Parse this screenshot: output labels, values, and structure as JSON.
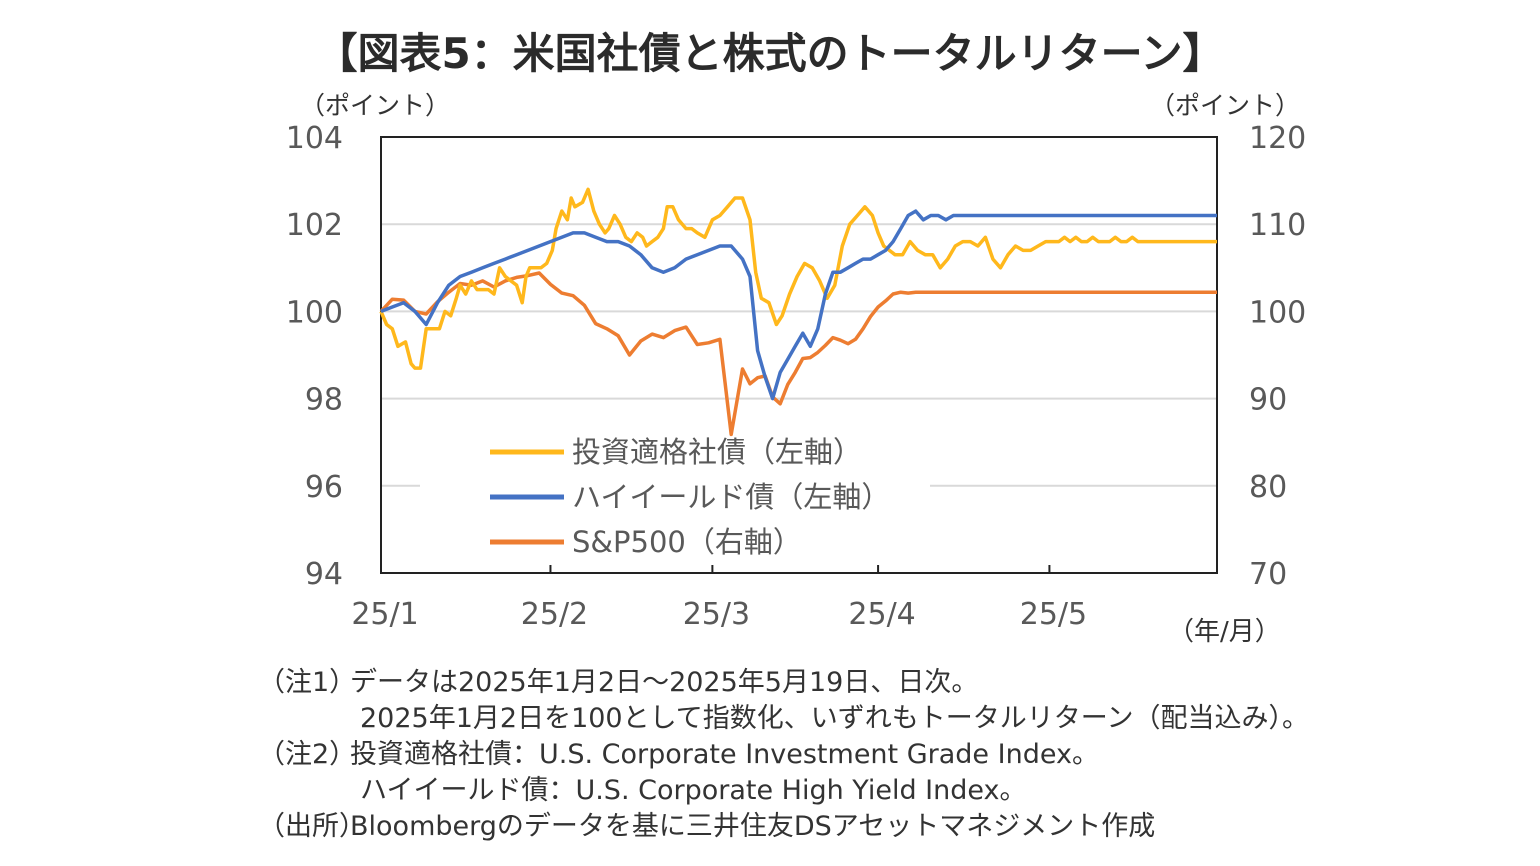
{
  "title": "【図表5：米国社債と株式のトータルリターン】",
  "chart_data": {
    "type": "line",
    "title": "【図表5：米国社債と株式のトータルリターン】",
    "left_axis": {
      "unit": "（ポイント）",
      "ylim": [
        94,
        104
      ],
      "ticks": [
        "104",
        "102",
        "100",
        "98",
        "96",
        "94"
      ]
    },
    "right_axis": {
      "unit": "（ポイント）",
      "ylim": [
        70,
        120
      ],
      "ticks": [
        "120",
        "110",
        "100",
        "90",
        "80",
        "70"
      ]
    },
    "x_axis": {
      "unit": "（年/月）",
      "ticks": [
        "25/1",
        "25/2",
        "25/3",
        "25/4",
        "25/5"
      ]
    },
    "grid": "horizontal",
    "legend_position": "lower-left",
    "series": [
      {
        "name": "投資適格社債（左軸）",
        "axis": "left",
        "color": "#FFB81C",
        "x": [
          0,
          3,
          6,
          9,
          13,
          16,
          18,
          21,
          24,
          26,
          28,
          31,
          34,
          37,
          40,
          42,
          45,
          48,
          51,
          54,
          57,
          60,
          63,
          66,
          69,
          72,
          75,
          77,
          79,
          82,
          85,
          88,
          91,
          93,
          96,
          99,
          101,
          103,
          107,
          110,
          113,
          116,
          119,
          121,
          124,
          127,
          130,
          133,
          136,
          139,
          141,
          144,
          147,
          150,
          152,
          155,
          158,
          162,
          165,
          168,
          172,
          176,
          180,
          184,
          188,
          192,
          196,
          199,
          202,
          206,
          210,
          213,
          217,
          221,
          225,
          229,
          233,
          237,
          241,
          245,
          249,
          253,
          257,
          261,
          264,
          267,
          270,
          273,
          277,
          281,
          285,
          289,
          293,
          297,
          301,
          305,
          309,
          313,
          317,
          321,
          325,
          329,
          333,
          337,
          341,
          345,
          349,
          353,
          357,
          360,
          363,
          366,
          369,
          372,
          375,
          378,
          381,
          384,
          387,
          390,
          393,
          396,
          399,
          402,
          405,
          408,
          411,
          414,
          417,
          420,
          423,
          426,
          429,
          432,
          435,
          438,
          441,
          444
        ],
        "y": [
          100,
          99.7,
          99.6,
          99.2,
          99.3,
          98.8,
          98.7,
          98.7,
          99.6,
          99.6,
          99.6,
          99.6,
          100.0,
          99.9,
          100.3,
          100.6,
          100.4,
          100.7,
          100.5,
          100.5,
          100.5,
          100.4,
          101.0,
          100.8,
          100.7,
          100.6,
          100.2,
          100.8,
          101.0,
          101.0,
          101.0,
          101.1,
          101.4,
          101.9,
          102.3,
          102.1,
          102.6,
          102.4,
          102.5,
          102.8,
          102.3,
          102.0,
          101.8,
          101.9,
          102.2,
          102.0,
          101.7,
          101.6,
          101.8,
          101.7,
          101.5,
          101.6,
          101.7,
          101.9,
          102.4,
          102.4,
          102.1,
          101.9,
          101.9,
          101.8,
          101.7,
          102.1,
          102.2,
          102.4,
          102.6,
          102.6,
          102.1,
          100.9,
          100.3,
          100.2,
          99.7,
          99.9,
          100.4,
          100.8,
          101.1,
          101.0,
          100.7,
          100.3,
          100.6,
          101.5,
          102.0,
          102.2,
          102.4,
          102.2,
          101.8,
          101.5,
          101.4,
          101.3,
          101.3,
          101.6,
          101.4,
          101.3,
          101.3,
          101.0,
          101.2,
          101.5,
          101.6,
          101.6,
          101.5,
          101.7,
          101.2,
          101.0,
          101.3,
          101.5,
          101.4,
          101.4,
          101.5,
          101.6,
          101.6,
          101.6,
          101.7,
          101.6,
          101.7,
          101.6,
          101.6,
          101.7,
          101.6,
          101.6,
          101.6,
          101.7,
          101.6,
          101.6,
          101.7,
          101.6,
          101.6,
          101.6,
          101.6,
          101.6,
          101.6,
          101.6,
          101.6,
          101.6,
          101.6,
          101.6,
          101.6,
          101.6,
          101.6,
          101.6
        ]
      },
      {
        "name": "ハイイールド債（左軸）",
        "axis": "left",
        "color": "#4472C4",
        "x": [
          0,
          6,
          12,
          18,
          24,
          30,
          36,
          42,
          48,
          54,
          60,
          66,
          72,
          78,
          84,
          90,
          96,
          102,
          108,
          114,
          120,
          126,
          132,
          138,
          144,
          150,
          156,
          162,
          168,
          174,
          180,
          186,
          192,
          196,
          200,
          204,
          208,
          212,
          216,
          220,
          224,
          228,
          232,
          236,
          240,
          244,
          248,
          252,
          256,
          260,
          264,
          268,
          272,
          276,
          280,
          284,
          288,
          292,
          296,
          300,
          304,
          308,
          312,
          316,
          320,
          324,
          328,
          332,
          336,
          340,
          344,
          348,
          352,
          356,
          360,
          364,
          368,
          372,
          376,
          380,
          384,
          388,
          392,
          396,
          400,
          404,
          408,
          412,
          416,
          420,
          424,
          428,
          432,
          436,
          440,
          444
        ],
        "y": [
          100,
          100.1,
          100.2,
          100.0,
          99.7,
          100.2,
          100.6,
          100.8,
          100.9,
          101.0,
          101.1,
          101.2,
          101.3,
          101.4,
          101.5,
          101.6,
          101.7,
          101.8,
          101.8,
          101.7,
          101.6,
          101.6,
          101.5,
          101.3,
          101.0,
          100.9,
          101.0,
          101.2,
          101.3,
          101.4,
          101.5,
          101.5,
          101.2,
          100.8,
          99.1,
          98.5,
          98.0,
          98.6,
          98.9,
          99.2,
          99.5,
          99.2,
          99.6,
          100.4,
          100.9,
          100.9,
          101.0,
          101.1,
          101.2,
          101.2,
          101.3,
          101.4,
          101.6,
          101.9,
          102.2,
          102.3,
          102.1,
          102.2,
          102.2,
          102.1,
          102.2,
          102.2,
          102.2,
          102.2,
          102.2,
          102.2,
          102.2,
          102.2,
          102.2,
          102.2,
          102.2,
          102.2,
          102.2,
          102.2,
          102.2,
          102.2,
          102.2,
          102.2,
          102.2,
          102.2,
          102.2,
          102.2,
          102.2,
          102.2,
          102.2,
          102.2,
          102.2,
          102.2,
          102.2,
          102.2,
          102.2,
          102.2,
          102.2,
          102.2,
          102.2,
          102.2
        ]
      },
      {
        "name": "S&P500（右軸）",
        "axis": "right",
        "color": "#ED7D31",
        "x": [
          0,
          6,
          12,
          18,
          24,
          30,
          36,
          42,
          48,
          54,
          60,
          66,
          72,
          78,
          84,
          90,
          96,
          102,
          108,
          114,
          120,
          126,
          132,
          138,
          144,
          150,
          156,
          162,
          168,
          174,
          180,
          186,
          192,
          196,
          200,
          204,
          208,
          212,
          216,
          220,
          224,
          228,
          232,
          236,
          240,
          244,
          248,
          252,
          256,
          260,
          264,
          268,
          272,
          276,
          280,
          284,
          288,
          292,
          296,
          300,
          304,
          308,
          312,
          316,
          320,
          324,
          328,
          332,
          336,
          340,
          344,
          348,
          352,
          356,
          360,
          364,
          368,
          372,
          376,
          380,
          384,
          388,
          392,
          396,
          400,
          404,
          408,
          412,
          416,
          420,
          424,
          428,
          432,
          436,
          440,
          444
        ],
        "y": [
          100,
          101.4,
          101.3,
          100,
          99.7,
          101.1,
          102.2,
          103.2,
          103.0,
          103.5,
          102.8,
          103.5,
          103.9,
          104.1,
          104.4,
          103.1,
          102.1,
          101.8,
          100.7,
          98.6,
          98.0,
          97.2,
          95.0,
          96.6,
          97.4,
          97.0,
          97.8,
          98.2,
          96.2,
          96.4,
          96.8,
          85.9,
          93.4,
          91.7,
          92.4,
          92.6,
          90.2,
          89.4,
          91.6,
          93.0,
          94.6,
          94.7,
          95.3,
          96.1,
          97.0,
          96.7,
          96.3,
          96.8,
          98.0,
          99.4,
          100.5,
          101.2,
          102.0,
          102.2,
          102.1,
          102.2,
          102.2,
          102.2,
          102.2,
          102.2,
          102.2,
          102.2,
          102.2,
          102.2,
          102.2,
          102.2,
          102.2,
          102.2,
          102.2,
          102.2,
          102.2,
          102.2,
          102.2,
          102.2,
          102.2,
          102.2,
          102.2,
          102.2,
          102.2,
          102.2,
          102.2,
          102.2,
          102.2,
          102.2,
          102.2,
          102.2,
          102.2,
          102.2,
          102.2,
          102.2,
          102.2,
          102.2,
          102.2,
          102.2,
          102.2,
          102.2
        ]
      }
    ]
  },
  "notes": [
    {
      "head": "（注1）",
      "text": "データは2025年1月2日～2025年5月19日、日次。"
    },
    {
      "head": "",
      "text": "2025年1月2日を100として指数化、いずれもトータルリターン（配当込み）。"
    },
    {
      "head": "（注2）",
      "text": "投資適格社債：U.S. Corporate Investment Grade Index。"
    },
    {
      "head": "",
      "text": "ハイイールド債：U.S. Corporate High Yield Index。"
    },
    {
      "head": "（出所）",
      "text": "Bloombergのデータを基に三井住友DSアセットマネジメント作成"
    }
  ]
}
